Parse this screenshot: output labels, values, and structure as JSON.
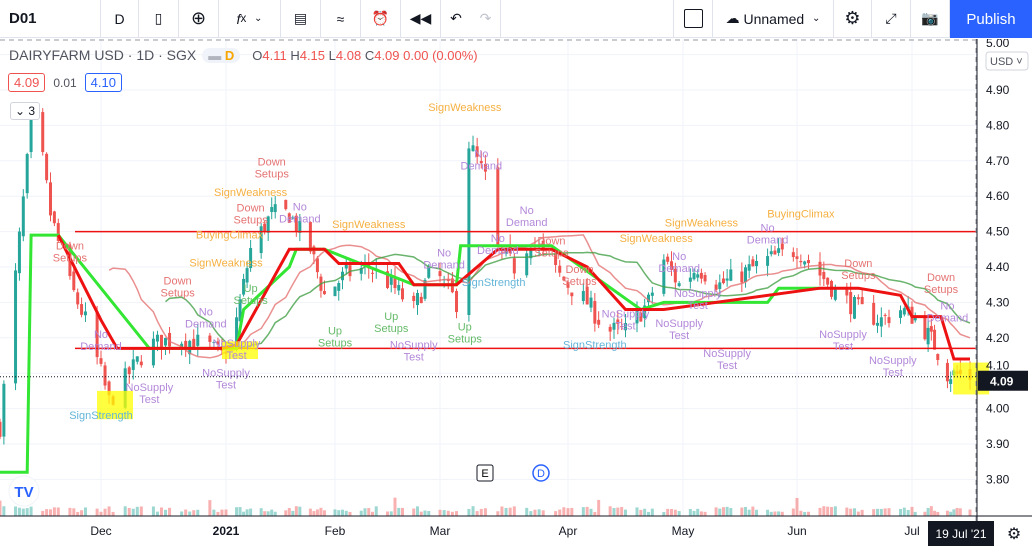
{
  "toolbar": {
    "symbol": "D01",
    "interval": "D",
    "layout_name": "Unnamed",
    "publish": "Publish",
    "icons": [
      "candles-icon",
      "add-compare-icon",
      "indicators-icon",
      "chevron-down-icon",
      "templates-icon",
      "compare-chart-icon",
      "alert-icon",
      "replay-icon",
      "undo-icon",
      "redo-icon"
    ],
    "right_icons": [
      "square-icon",
      "cloud-icon",
      "gear-icon",
      "fullscreen-icon",
      "camera-icon"
    ]
  },
  "legend": {
    "title": "DAIRYFARM USD · 1D · SGX",
    "badge": "D",
    "open_label": "O",
    "open": "4.11",
    "high_label": "H",
    "high": "4.15",
    "low_label": "L",
    "low": "4.08",
    "close_label": "C",
    "close": "4.09",
    "change": "0.00 (0.00%)",
    "bid": "4.09",
    "spread": "0.01",
    "ask": "4.10",
    "indicators_count": "3"
  },
  "axis": {
    "currency": "USD",
    "price_ticks": [
      "5.00",
      "4.90",
      "4.80",
      "4.70",
      "4.60",
      "4.50",
      "4.40",
      "4.30",
      "4.20",
      "4.10",
      "4.00",
      "3.90",
      "3.80"
    ],
    "last_price": "4.09",
    "time_ticks": [
      {
        "label": "Dec",
        "date": "2020-12-01"
      },
      {
        "label": "2021",
        "date": "2021-01-01"
      },
      {
        "label": "Feb",
        "date": "2021-02-01"
      },
      {
        "label": "Mar",
        "date": "2021-03-01"
      },
      {
        "label": "Apr",
        "date": "2021-04-01"
      },
      {
        "label": "May",
        "date": "2021-05-01"
      },
      {
        "label": "Jun",
        "date": "2021-06-01"
      },
      {
        "label": "Jul",
        "date": "2021-07-01"
      }
    ],
    "crosshair_date": "19 Jul '21"
  },
  "colors": {
    "up": "#26a69a",
    "down": "#ef5350",
    "accent": "#2962ff",
    "support": "#33e633",
    "resistance": "#ee1111"
  },
  "markers": {
    "earnings": "E",
    "dividend": "D"
  },
  "chart_data": {
    "type": "candlestick",
    "ylim": [
      3.75,
      5.03
    ],
    "close_path": [
      [
        "2020-11-05",
        3.95
      ],
      [
        "2020-11-13",
        4.8
      ],
      [
        "2020-11-16",
        4.7
      ],
      [
        "2020-11-18",
        4.55
      ],
      [
        "2020-11-23",
        4.35
      ],
      [
        "2020-11-27",
        4.25
      ],
      [
        "2020-12-01",
        4.1
      ],
      [
        "2020-12-03",
        4.02
      ],
      [
        "2020-12-08",
        4.1
      ],
      [
        "2020-12-13",
        4.18
      ],
      [
        "2020-12-20",
        4.2
      ],
      [
        "2020-12-27",
        4.18
      ],
      [
        "2020-12-31",
        4.15
      ],
      [
        "2021-01-04",
        4.25
      ],
      [
        "2021-01-08",
        4.45
      ],
      [
        "2021-01-14",
        4.55
      ],
      [
        "2021-01-19",
        4.55
      ],
      [
        "2021-01-25",
        4.45
      ],
      [
        "2021-01-29",
        4.32
      ],
      [
        "2021-02-04",
        4.38
      ],
      [
        "2021-02-10",
        4.4
      ],
      [
        "2021-02-16",
        4.35
      ],
      [
        "2021-02-22",
        4.28
      ],
      [
        "2021-02-27",
        4.4
      ],
      [
        "2021-03-05",
        4.3
      ],
      [
        "2021-03-08",
        4.75
      ],
      [
        "2021-03-12",
        4.65
      ],
      [
        "2021-03-15",
        4.45
      ],
      [
        "2021-03-19",
        4.4
      ],
      [
        "2021-03-23",
        4.48
      ],
      [
        "2021-03-28",
        4.4
      ],
      [
        "2021-04-01",
        4.35
      ],
      [
        "2021-04-06",
        4.3
      ],
      [
        "2021-04-11",
        4.22
      ],
      [
        "2021-04-16",
        4.22
      ],
      [
        "2021-04-22",
        4.3
      ],
      [
        "2021-04-26",
        4.42
      ],
      [
        "2021-04-30",
        4.35
      ],
      [
        "2021-05-05",
        4.4
      ],
      [
        "2021-05-11",
        4.35
      ],
      [
        "2021-05-17",
        4.38
      ],
      [
        "2021-05-24",
        4.42
      ],
      [
        "2021-06-01",
        4.45
      ],
      [
        "2021-06-07",
        4.38
      ],
      [
        "2021-06-12",
        4.32
      ],
      [
        "2021-06-17",
        4.28
      ],
      [
        "2021-06-23",
        4.25
      ],
      [
        "2021-06-28",
        4.28
      ],
      [
        "2021-07-03",
        4.25
      ],
      [
        "2021-07-08",
        4.18
      ],
      [
        "2021-07-12",
        4.1
      ],
      [
        "2021-07-19",
        4.09
      ]
    ],
    "horizontal_lines": [
      4.5,
      4.17
    ],
    "support_step": [
      [
        "2020-11-05",
        3.82
      ],
      [
        "2020-11-12",
        3.82
      ],
      [
        "2020-11-13",
        4.49
      ],
      [
        "2020-11-20",
        4.49
      ],
      [
        "2020-12-13",
        4.17
      ],
      [
        "2021-01-04",
        4.17
      ],
      [
        "2021-01-06",
        4.28
      ],
      [
        "2021-01-19",
        4.4
      ],
      [
        "2021-01-21",
        4.45
      ],
      [
        "2021-01-29",
        4.45
      ],
      [
        "2021-02-22",
        4.35
      ],
      [
        "2021-03-05",
        4.35
      ],
      [
        "2021-03-06",
        4.46
      ],
      [
        "2021-03-28",
        4.46
      ],
      [
        "2021-04-20",
        4.28
      ],
      [
        "2021-04-26",
        4.3
      ],
      [
        "2021-05-24",
        4.3
      ],
      [
        "2021-05-27",
        4.34
      ],
      [
        "2021-06-07",
        4.34
      ]
    ],
    "resistance_step": [
      [
        "2020-11-20",
        4.49
      ],
      [
        "2020-12-01",
        4.25
      ],
      [
        "2020-12-05",
        4.17
      ],
      [
        "2020-12-31",
        4.17
      ],
      [
        "2021-01-04",
        4.18
      ],
      [
        "2021-01-19",
        4.45
      ],
      [
        "2021-01-29",
        4.45
      ],
      [
        "2021-02-02",
        4.41
      ],
      [
        "2021-02-18",
        4.41
      ],
      [
        "2021-02-22",
        4.35
      ],
      [
        "2021-03-05",
        4.35
      ],
      [
        "2021-03-15",
        4.45
      ],
      [
        "2021-03-28",
        4.45
      ],
      [
        "2021-04-06",
        4.4
      ],
      [
        "2021-04-16",
        4.28
      ],
      [
        "2021-04-26",
        4.28
      ],
      [
        "2021-06-07",
        4.34
      ],
      [
        "2021-06-17",
        4.34
      ],
      [
        "2021-06-28",
        4.32
      ],
      [
        "2021-07-01",
        4.26
      ],
      [
        "2021-07-10",
        4.26
      ],
      [
        "2021-07-14",
        4.14
      ],
      [
        "2021-07-19",
        4.14
      ]
    ],
    "annotations": [
      {
        "text": "Down Setups",
        "date": "2020-11-23",
        "price": 4.45,
        "type": "down"
      },
      {
        "text": "No Demand",
        "date": "2020-12-01",
        "price": 4.2,
        "type": "nd"
      },
      {
        "text": "SignStrength",
        "date": "2020-12-01",
        "price": 3.97,
        "type": "ss"
      },
      {
        "text": "NoSupply Test",
        "date": "2020-12-13",
        "price": 4.05,
        "type": "nd"
      },
      {
        "text": "Down Setups",
        "date": "2020-12-20",
        "price": 4.35,
        "type": "down"
      },
      {
        "text": "No Demand",
        "date": "2020-12-27",
        "price": 4.28,
        "type": "nd"
      },
      {
        "text": "SignWeakness",
        "date": "2021-01-01",
        "price": 4.3,
        "type": "sw"
      },
      {
        "text": "NoSupply Test",
        "date": "2021-01-01",
        "price": 4.09,
        "type": "nd"
      },
      {
        "text": "NoSupply Test",
        "date": "2021-01-04",
        "price": 4.14,
        "type": "nd"
      },
      {
        "text": "BuyingClimax",
        "date": "2021-01-02",
        "price": 4.48,
        "type": "sw"
      },
      {
        "text": "Up Setups",
        "date": "2021-01-08",
        "price": 4.33,
        "type": "up"
      },
      {
        "text": "SignWeakness",
        "date": "2021-01-08",
        "price": 4.6,
        "type": "sw"
      },
      {
        "text": "Down Setups",
        "date": "2021-01-08",
        "price": 4.54,
        "type": "down"
      },
      {
        "text": "Down Setups",
        "date": "2021-01-14",
        "price": 4.67,
        "type": "down"
      },
      {
        "text": "No Demand",
        "date": "2021-01-22",
        "price": 4.56,
        "type": "nd"
      },
      {
        "text": "SignWeakness",
        "date": "2021-02-10",
        "price": 4.51,
        "type": "sw"
      },
      {
        "text": "Up Setups",
        "date": "2021-02-01",
        "price": 4.21,
        "type": "up"
      },
      {
        "text": "Up Setups",
        "date": "2021-02-16",
        "price": 4.25,
        "type": "up"
      },
      {
        "text": "NoSupply Test",
        "date": "2021-02-22",
        "price": 4.17,
        "type": "nd"
      },
      {
        "text": "No Demand",
        "date": "2021-03-02",
        "price": 4.43,
        "type": "nd"
      },
      {
        "text": "Up Setups",
        "date": "2021-03-07",
        "price": 4.22,
        "type": "up"
      },
      {
        "text": "SignStrength",
        "date": "2021-03-14",
        "price": 4.38,
        "type": "ss"
      },
      {
        "text": "SignWeakness",
        "date": "2021-03-07",
        "price": 4.84,
        "type": "sw"
      },
      {
        "text": "No Demand",
        "date": "2021-03-11",
        "price": 4.71,
        "type": "nd"
      },
      {
        "text": "No Demand",
        "date": "2021-03-15",
        "price": 4.47,
        "type": "nd"
      },
      {
        "text": "No Demand",
        "date": "2021-03-22",
        "price": 4.55,
        "type": "nd"
      },
      {
        "text": "Down Setups",
        "date": "2021-03-28",
        "price": 4.48,
        "type": "down"
      },
      {
        "text": "Down Setups",
        "date": "2021-04-04",
        "price": 4.4,
        "type": "down"
      },
      {
        "text": "SignStrength",
        "date": "2021-04-08",
        "price": 4.17,
        "type": "ss"
      },
      {
        "text": "NoSupply Test",
        "date": "2021-04-16",
        "price": 4.19,
        "type": "nd"
      },
      {
        "text": "SignWeakness",
        "date": "2021-04-24",
        "price": 4.47,
        "type": "sw"
      },
      {
        "text": "No Demand",
        "date": "2021-04-30",
        "price": 4.42,
        "type": "nd"
      },
      {
        "text": "SignWeakness",
        "date": "2021-05-06",
        "price": 4.48,
        "type": "sw"
      },
      {
        "text": "NoSupply Test",
        "date": "2021-04-30",
        "price": 4.23,
        "type": "nd"
      },
      {
        "text": "NoSupply Test",
        "date": "2021-05-05",
        "price": 4.23,
        "type": "nd"
      },
      {
        "text": "NoSupply Test",
        "date": "2021-05-13",
        "price": 4.23,
        "type": "nd"
      },
      {
        "text": "No Demand",
        "date": "2021-05-24",
        "price": 4.5,
        "type": "nd"
      },
      {
        "text": "BuyingClimax",
        "date": "2021-06-02",
        "price": 4.54,
        "type": "sw"
      },
      {
        "text": "Down Setups",
        "date": "2021-06-17",
        "price": 4.4,
        "type": "down"
      },
      {
        "text": "NoSupply Test",
        "date": "2021-06-13",
        "price": 4.2,
        "type": "nd"
      },
      {
        "text": "NoSupply Test",
        "date": "2021-06-26",
        "price": 4.16,
        "type": "nd"
      },
      {
        "text": "Down Setups",
        "date": "2021-07-10",
        "price": 4.36,
        "type": "down"
      },
      {
        "text": "No Demand",
        "date": "2021-07-12",
        "price": 4.28,
        "type": "nd"
      }
    ]
  }
}
